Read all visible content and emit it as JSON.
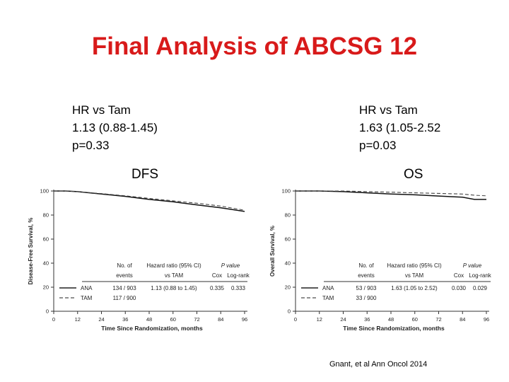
{
  "title": "Final Analysis of ABCSG 12",
  "citation": "Gnant, et al Ann Oncol 2014",
  "chart_data": [
    {
      "type": "line",
      "panel_label": "DFS",
      "summary": [
        "HR vs Tam",
        "1.13 (0.88-1.45)",
        "p=0.33"
      ],
      "ylabel": "Disease-Free Survival, %",
      "xlabel": "Time Since Randomization, months",
      "xlim": [
        0,
        96
      ],
      "ylim": [
        0,
        100
      ],
      "xticks": [
        "0",
        "12",
        "24",
        "36",
        "48",
        "60",
        "72",
        "84",
        "96"
      ],
      "yticks": [
        "0",
        "20",
        "40",
        "60",
        "80",
        "100"
      ],
      "series": [
        {
          "name": "ANA",
          "style": "solid",
          "x": [
            0,
            6,
            12,
            24,
            36,
            48,
            60,
            72,
            84,
            96
          ],
          "y": [
            100,
            100,
            99.5,
            97.5,
            95.5,
            93,
            91,
            88.5,
            86,
            83
          ]
        },
        {
          "name": "TAM",
          "style": "dashed",
          "x": [
            0,
            6,
            12,
            24,
            36,
            48,
            60,
            72,
            84,
            96
          ],
          "y": [
            100,
            100,
            99.5,
            97.8,
            96,
            93.8,
            91.8,
            89.8,
            87.5,
            84
          ]
        }
      ],
      "table": {
        "headers": [
          "No. of",
          "Hazard ratio (95% CI)",
          "P value"
        ],
        "subheaders": [
          "events",
          "vs TAM",
          "Cox",
          "Log-rank"
        ],
        "rows": [
          {
            "group": "ANA",
            "events": "134 / 903",
            "hr": "1.13 (0.88 to 1.45)",
            "cox": "0.335",
            "logrank": "0.333"
          },
          {
            "group": "TAM",
            "events": "117 / 900",
            "hr": "",
            "cox": "",
            "logrank": ""
          }
        ]
      }
    },
    {
      "type": "line",
      "panel_label": "OS",
      "summary": [
        "HR vs Tam",
        "1.63 (1.05-2.52",
        "p=0.03"
      ],
      "ylabel": "Overall Survival, %",
      "xlabel": "Time Since Randomization, months",
      "xlim": [
        0,
        96
      ],
      "ylim": [
        0,
        100
      ],
      "xticks": [
        "0",
        "12",
        "24",
        "36",
        "48",
        "60",
        "72",
        "84",
        "96"
      ],
      "yticks": [
        "0",
        "20",
        "40",
        "60",
        "80",
        "100"
      ],
      "series": [
        {
          "name": "ANA",
          "style": "solid",
          "x": [
            0,
            12,
            24,
            36,
            48,
            60,
            72,
            84,
            90,
            96
          ],
          "y": [
            100,
            100,
            99.5,
            98.5,
            97.5,
            96.8,
            95.8,
            94.8,
            93,
            93
          ]
        },
        {
          "name": "TAM",
          "style": "dashed",
          "x": [
            0,
            12,
            24,
            36,
            48,
            60,
            72,
            84,
            90,
            96
          ],
          "y": [
            100,
            100,
            100,
            99.5,
            99,
            98.5,
            98,
            97.5,
            96.5,
            96
          ]
        }
      ],
      "table": {
        "headers": [
          "No. of",
          "Hazard ratio (95% CI)",
          "P value"
        ],
        "subheaders": [
          "events",
          "vs TAM",
          "Cox",
          "Log-rank"
        ],
        "rows": [
          {
            "group": "ANA",
            "events": "53 / 903",
            "hr": "1.63 (1.05 to 2.52)",
            "cox": "0.030",
            "logrank": "0.029"
          },
          {
            "group": "TAM",
            "events": "33 / 900",
            "hr": "",
            "cox": "",
            "logrank": ""
          }
        ]
      }
    }
  ]
}
